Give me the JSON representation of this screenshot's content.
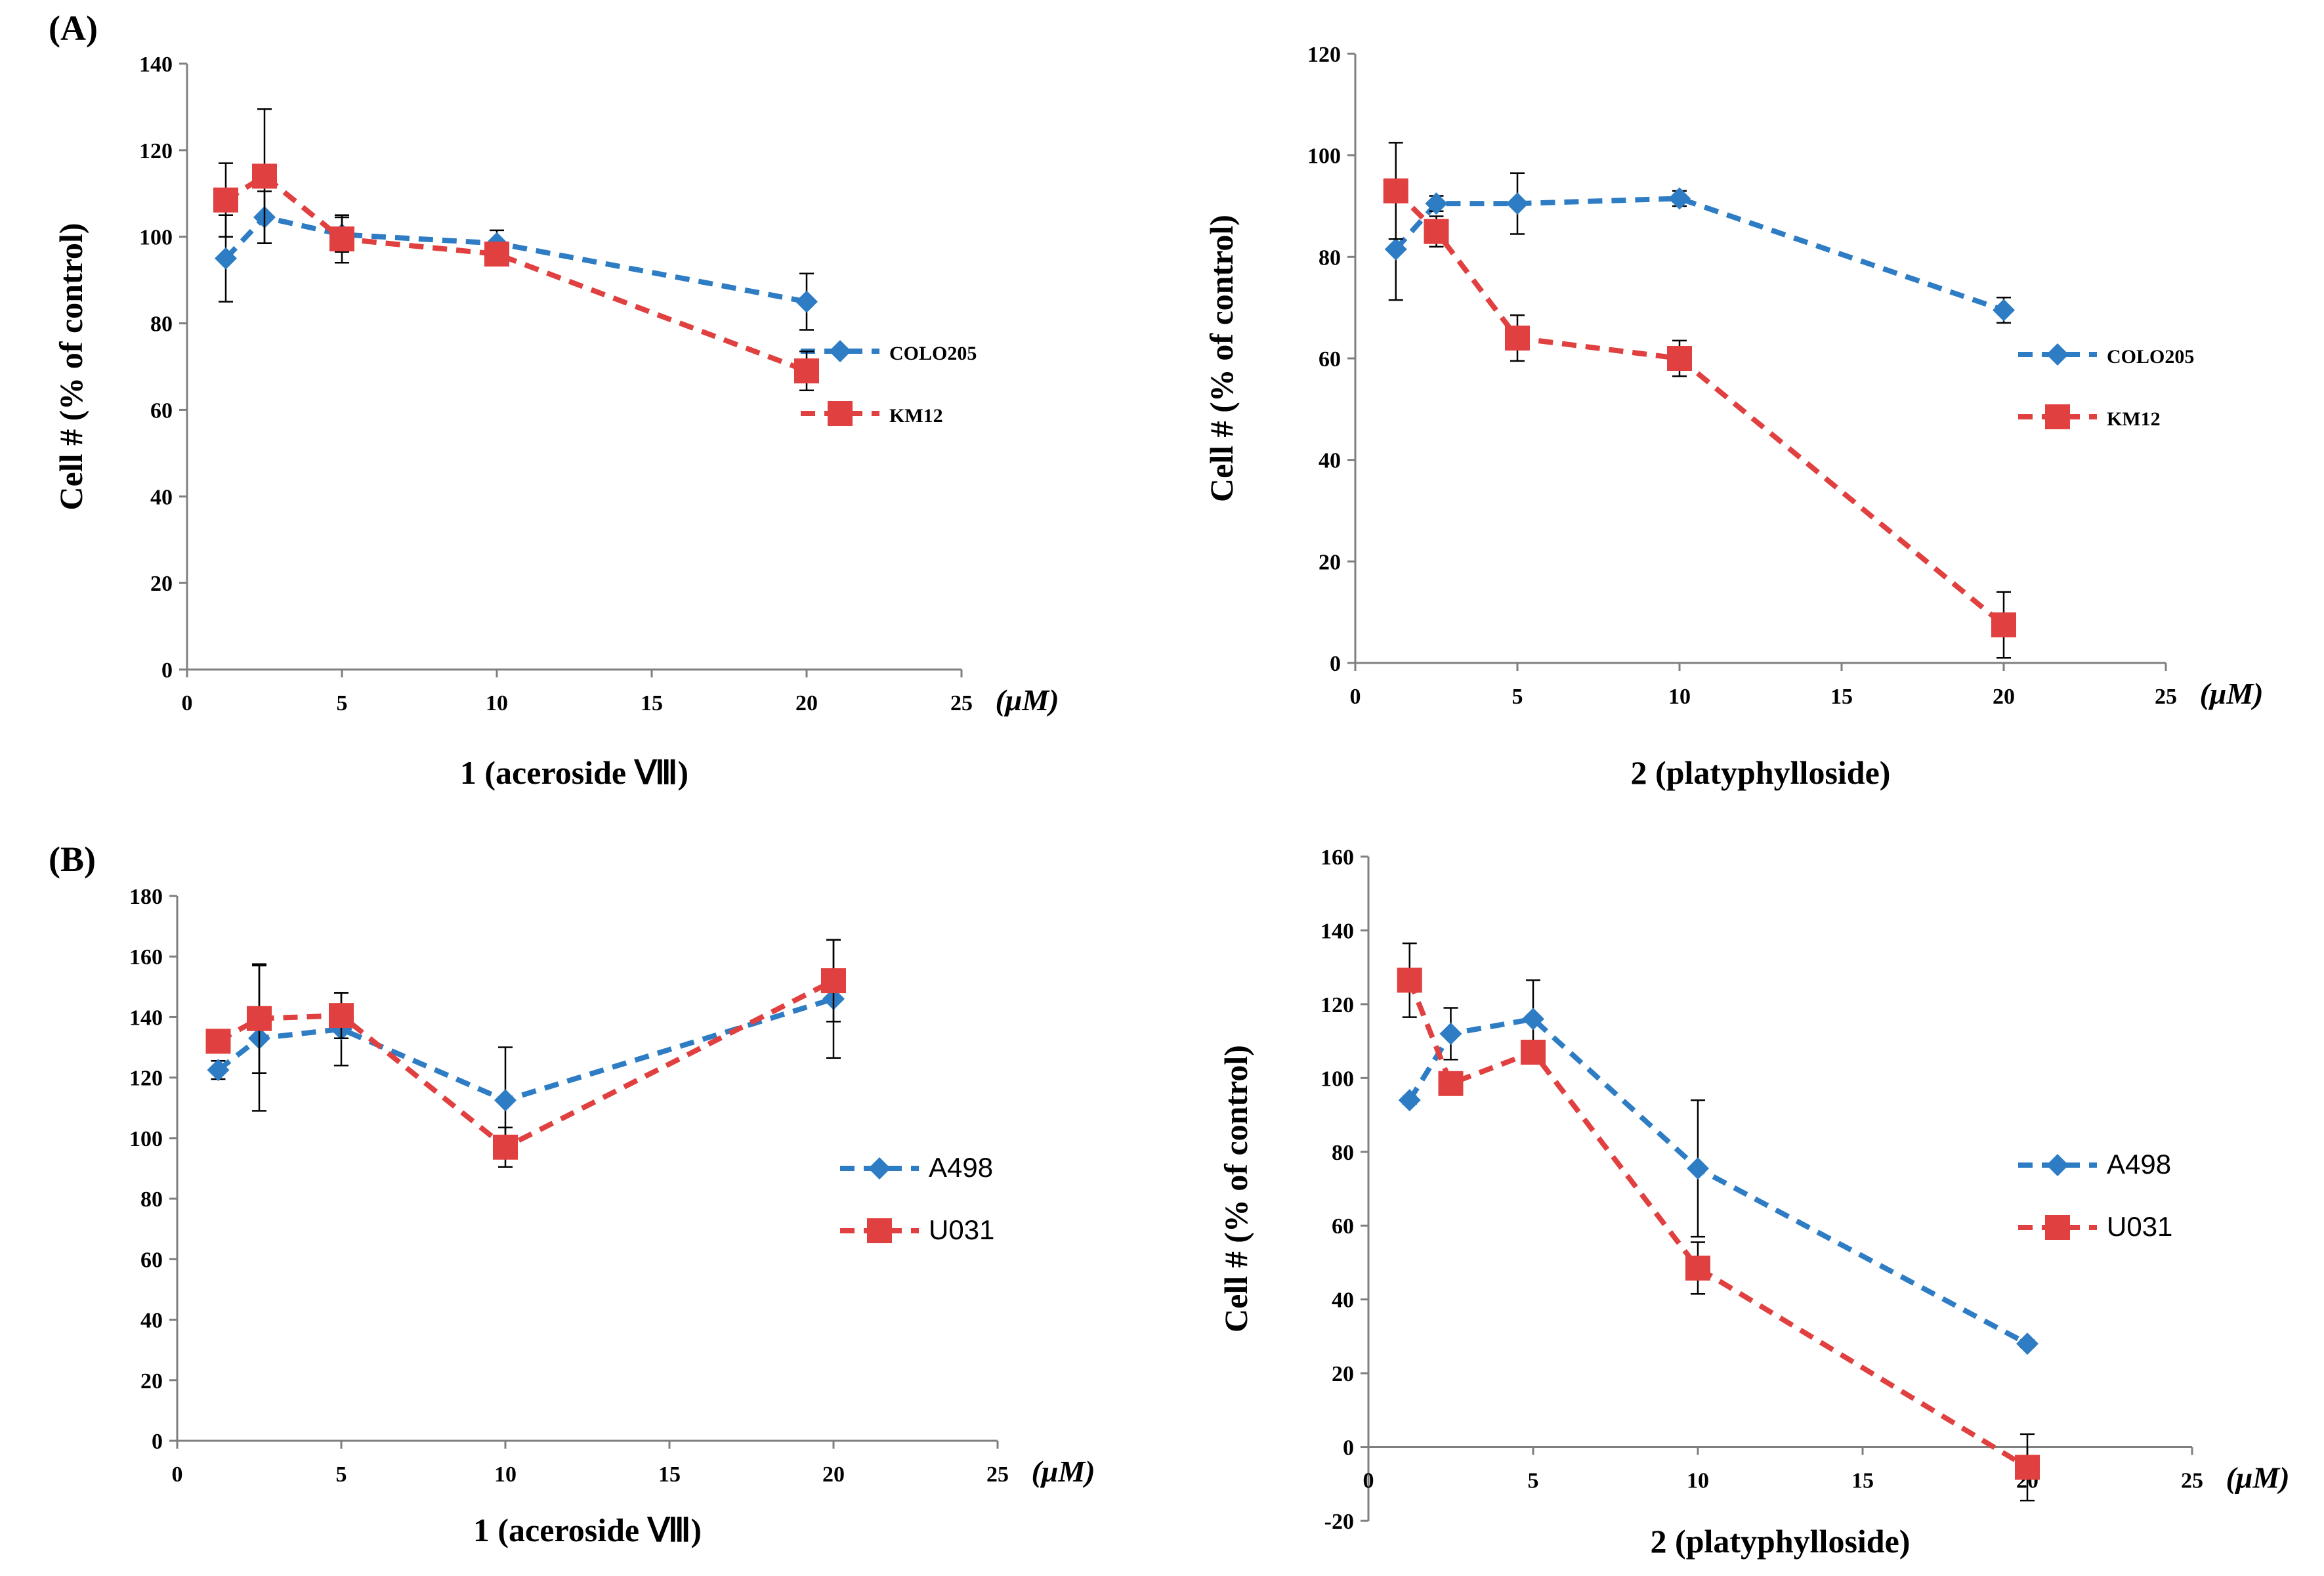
{
  "panel_labels": {
    "a": "(A)",
    "b": "(B)"
  },
  "colors": {
    "series1": "#2e7dc4",
    "series2": "#e0403f",
    "axis": "#7f7f7f",
    "error": "#000000"
  },
  "chart_data": [
    {
      "type": "line",
      "xlabel": "1 (aceroside Ⅷ)",
      "ylabel": "Cell # (% of control)",
      "x_unit": "(μM)",
      "xlim": [
        0,
        25
      ],
      "ylim": [
        0,
        140
      ],
      "xticks": [
        0,
        5,
        10,
        15,
        20,
        25
      ],
      "yticks": [
        0,
        20,
        40,
        60,
        80,
        100,
        120,
        140
      ],
      "legend_position": "right",
      "series": [
        {
          "name": "COLO205",
          "marker": "diamond",
          "x": [
            1.25,
            2.5,
            5,
            10,
            20
          ],
          "y": [
            95,
            104.5,
            100.5,
            98.5,
            85
          ],
          "err": [
            10,
            6,
            4,
            3,
            6.5
          ]
        },
        {
          "name": "KM12",
          "marker": "square",
          "x": [
            1.25,
            2.5,
            5,
            10,
            20
          ],
          "y": [
            108.5,
            114,
            99.5,
            96,
            69
          ],
          "err": [
            8.5,
            15.5,
            5.5,
            2,
            4.5
          ]
        }
      ]
    },
    {
      "type": "line",
      "xlabel": "2 (platyphylloside)",
      "ylabel": "Cell # (% of control)",
      "x_unit": "(μM)",
      "xlim": [
        0,
        25
      ],
      "ylim": [
        0,
        120
      ],
      "xticks": [
        0,
        5,
        10,
        15,
        20,
        25
      ],
      "yticks": [
        0,
        20,
        40,
        60,
        80,
        100,
        120
      ],
      "legend_position": "right",
      "series": [
        {
          "name": "COLO205",
          "marker": "diamond",
          "x": [
            1.25,
            2.5,
            5,
            10,
            20
          ],
          "y": [
            81.5,
            90.5,
            90.5,
            91.5,
            69.5
          ],
          "err": [
            10,
            1.5,
            6,
            1.5,
            2.5
          ]
        },
        {
          "name": "KM12",
          "marker": "square",
          "x": [
            1.25,
            2.5,
            5,
            10,
            20
          ],
          "y": [
            93,
            85,
            64,
            60,
            7.5
          ],
          "err": [
            9.5,
            3,
            4.5,
            3.5,
            6.5
          ]
        }
      ]
    },
    {
      "type": "line",
      "xlabel": "1 (aceroside Ⅷ)",
      "ylabel": "",
      "x_unit": "(μM)",
      "xlim": [
        0,
        25
      ],
      "ylim": [
        0,
        180
      ],
      "xticks": [
        0,
        5,
        10,
        15,
        20,
        25
      ],
      "yticks": [
        0,
        20,
        40,
        60,
        80,
        100,
        120,
        140,
        160,
        180
      ],
      "legend_position": "right",
      "series": [
        {
          "name": "A498",
          "marker": "diamond",
          "x": [
            1.25,
            2.5,
            5,
            10,
            20
          ],
          "y": [
            122.5,
            133,
            136,
            112.5,
            146
          ],
          "err": [
            3,
            24,
            12,
            17.5,
            19.5
          ]
        },
        {
          "name": "U031",
          "marker": "square",
          "x": [
            1.25,
            2.5,
            5,
            10,
            20
          ],
          "y": [
            132,
            139.5,
            140.5,
            97,
            152
          ],
          "err": [
            2,
            18,
            7.5,
            6.5,
            13.5
          ]
        }
      ]
    },
    {
      "type": "line",
      "xlabel": "2 (platyphylloside)",
      "ylabel": "Cell # (% of control)",
      "x_unit": "(μM)",
      "xlim": [
        0,
        25
      ],
      "ylim": [
        -20,
        160
      ],
      "xticks": [
        0,
        5,
        10,
        15,
        20,
        25
      ],
      "yticks": [
        -20,
        0,
        20,
        40,
        60,
        80,
        100,
        120,
        140,
        160
      ],
      "legend_position": "right",
      "series": [
        {
          "name": "A498",
          "marker": "diamond",
          "x": [
            1.25,
            2.5,
            5,
            10,
            20
          ],
          "y": [
            94,
            112,
            116,
            75.5,
            28
          ],
          "err": [
            1,
            7,
            10.5,
            18.5,
            1
          ]
        },
        {
          "name": "U031",
          "marker": "square",
          "x": [
            1.25,
            2.5,
            5,
            10,
            20
          ],
          "y": [
            126.5,
            98.5,
            107,
            48.5,
            -5.5
          ],
          "err": [
            10,
            1,
            2,
            7,
            9
          ]
        }
      ]
    }
  ]
}
